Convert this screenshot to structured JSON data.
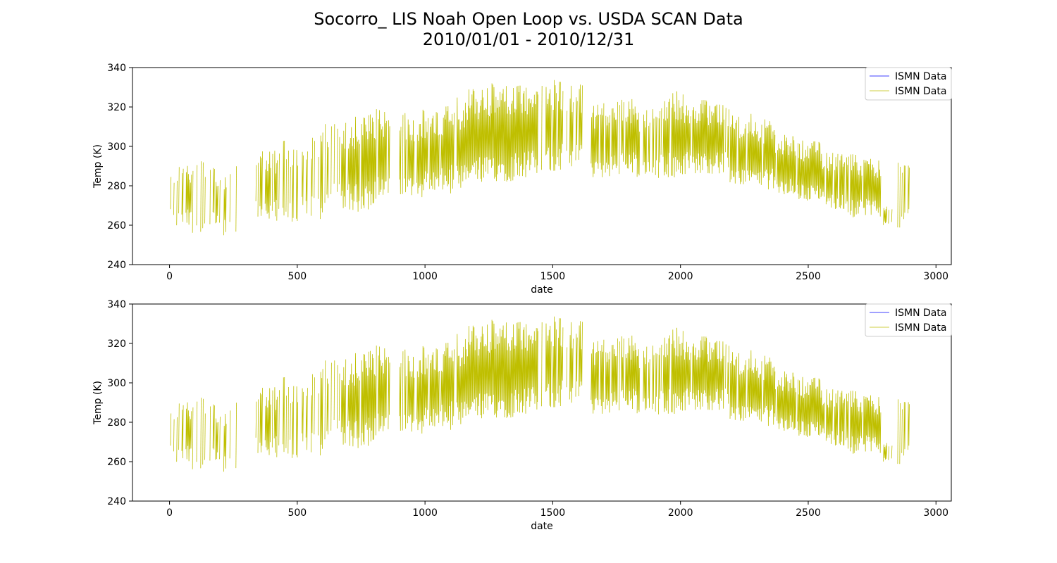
{
  "chart_data": {
    "type": "line",
    "title_line1": "Socorro_ LIS Noah Open Loop vs. USDA SCAN Data",
    "title_line2": "2010/01/01 - 2010/12/31",
    "series_colors": {
      "model": "#0000ff",
      "observed": "#bfbf00"
    },
    "subplots": [
      {
        "xlabel": "date",
        "ylabel": "Temp (K)",
        "xlim": [
          -145,
          3060
        ],
        "ylim": [
          240,
          340
        ],
        "xticks": [
          "0",
          "500",
          "1000",
          "1500",
          "2000",
          "2500",
          "3000"
        ],
        "yticks": [
          "240",
          "260",
          "280",
          "300",
          "320",
          "340"
        ],
        "legend": [
          "ISMN Data",
          "ISMN Data"
        ],
        "legend_loc": "upper-right"
      },
      {
        "xlabel": "date",
        "ylabel": "Temp (K)",
        "xlim": [
          -145,
          3060
        ],
        "ylim": [
          240,
          340
        ],
        "xticks": [
          "0",
          "500",
          "1000",
          "1500",
          "2000",
          "2500",
          "3000"
        ],
        "yticks": [
          "240",
          "260",
          "280",
          "300",
          "320",
          "340"
        ],
        "legend": [
          "ISMN Data",
          "ISMN Data"
        ],
        "legend_loc": "upper-right"
      }
    ],
    "series": [
      {
        "name": "ISMN Data",
        "role": "observed",
        "x_start": 0,
        "x_step": 8,
        "note": "diurnal envelope; each entry [day_index_start, day_count, seasonal_max_K, seasonal_min_K, fill_fraction]",
        "segments": [
          [
            0,
            90,
            292,
            258,
            0.55
          ],
          [
            90,
            90,
            296,
            255,
            0.35
          ],
          [
            180,
            90,
            290,
            254,
            0.4
          ],
          [
            330,
            90,
            299,
            262,
            0.55
          ],
          [
            420,
            90,
            305,
            258,
            0.45
          ],
          [
            510,
            90,
            308,
            262,
            0.55
          ],
          [
            600,
            90,
            312,
            268,
            0.55
          ],
          [
            690,
            90,
            316,
            266,
            0.8
          ],
          [
            780,
            90,
            320,
            270,
            0.85
          ],
          [
            900,
            90,
            317,
            274,
            0.7
          ],
          [
            990,
            90,
            319,
            276,
            0.9
          ],
          [
            1080,
            90,
            325,
            276,
            0.95
          ],
          [
            1170,
            90,
            330,
            280,
            0.95
          ],
          [
            1260,
            90,
            332,
            282,
            0.95
          ],
          [
            1350,
            90,
            331,
            284,
            0.9
          ],
          [
            1440,
            90,
            334,
            286,
            0.75
          ],
          [
            1530,
            90,
            332,
            288,
            0.7
          ],
          [
            1650,
            90,
            322,
            284,
            0.85
          ],
          [
            1740,
            90,
            324,
            286,
            0.85
          ],
          [
            1830,
            90,
            320,
            282,
            0.7
          ],
          [
            1920,
            90,
            328,
            284,
            0.9
          ],
          [
            2010,
            90,
            324,
            286,
            0.9
          ],
          [
            2100,
            90,
            323,
            286,
            0.95
          ],
          [
            2190,
            90,
            317,
            280,
            0.9
          ],
          [
            2280,
            90,
            314,
            278,
            0.9
          ],
          [
            2370,
            90,
            306,
            274,
            0.95
          ],
          [
            2460,
            90,
            303,
            272,
            0.95
          ],
          [
            2550,
            90,
            298,
            268,
            0.95
          ],
          [
            2640,
            90,
            296,
            264,
            0.95
          ],
          [
            2730,
            60,
            294,
            264,
            0.9
          ],
          [
            2790,
            40,
            270,
            260,
            0.6
          ],
          [
            2850,
            60,
            294,
            258,
            0.35
          ]
        ]
      },
      {
        "name": "ISMN Data",
        "role": "model",
        "note": "blue series not visible (hidden beneath observed series)"
      }
    ]
  }
}
